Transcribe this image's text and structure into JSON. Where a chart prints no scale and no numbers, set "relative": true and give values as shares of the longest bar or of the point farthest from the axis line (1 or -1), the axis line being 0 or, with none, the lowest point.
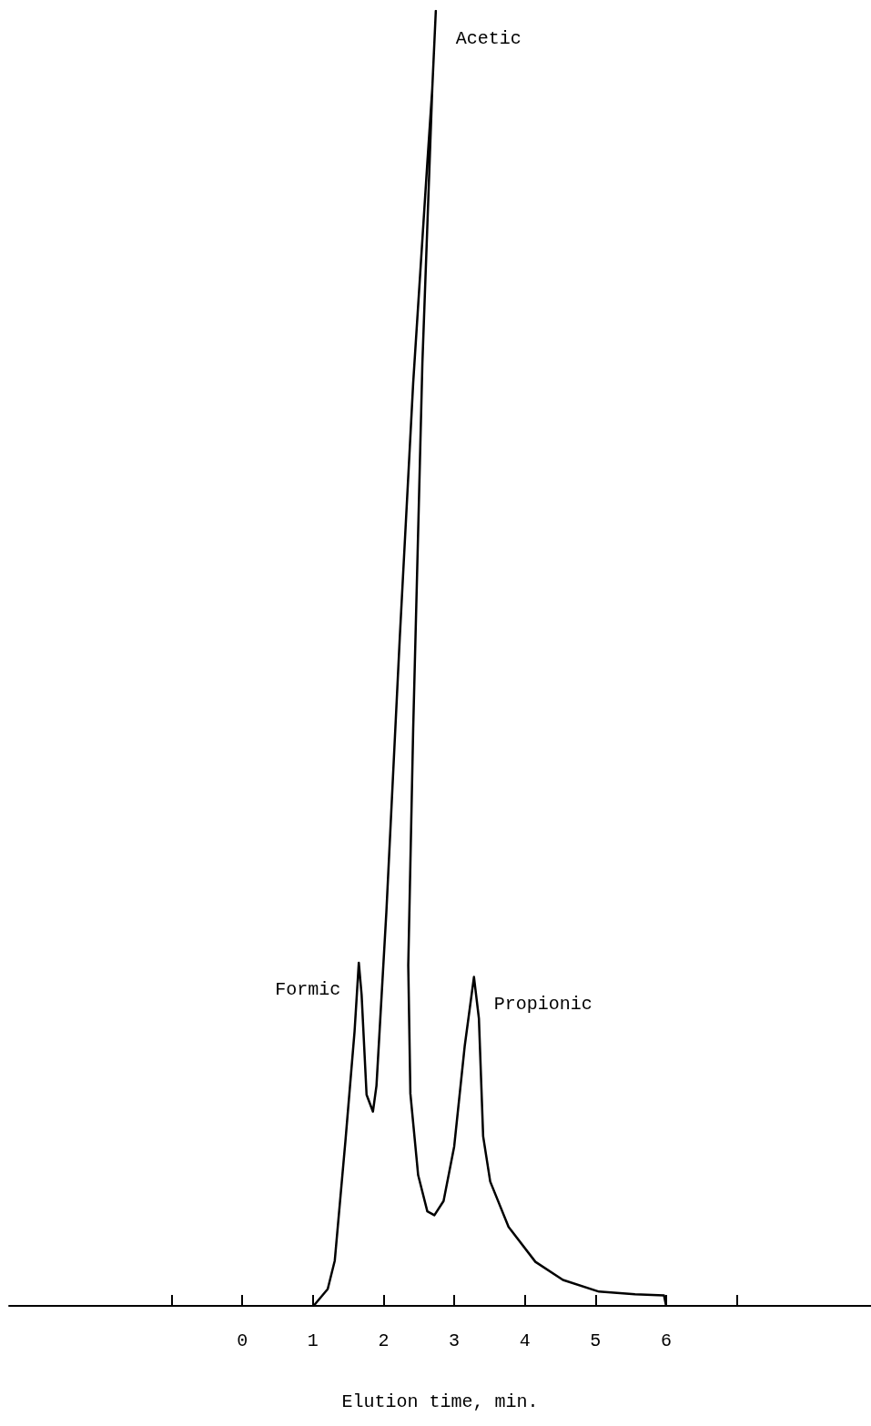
{
  "chart_data": {
    "type": "line",
    "relative": true,
    "xlabel": "Elution time, min.",
    "xlim": [
      -3.3,
      8.9
    ],
    "xticks": [
      {
        "value": -1,
        "label": null
      },
      0,
      1,
      2,
      3,
      4,
      5,
      6,
      {
        "value": 7,
        "label": null
      }
    ],
    "marker": "none",
    "line_style": "solid",
    "series": [
      {
        "color": "#000000",
        "x": [
          1.01,
          1.21,
          1.31,
          1.46,
          1.59,
          1.65,
          1.69,
          1.76,
          1.85,
          1.9,
          2.04,
          2.23,
          2.42,
          2.62,
          2.69,
          2.74,
          2.69,
          2.55,
          2.42,
          2.35,
          2.38,
          2.49,
          2.62,
          2.72,
          2.85,
          3.0,
          3.15,
          3.28,
          3.35,
          3.41,
          3.51,
          3.77,
          4.15,
          4.54,
          5.05,
          5.56,
          5.97,
          6.0
        ],
        "values": [
          0,
          0.013,
          0.035,
          0.127,
          0.212,
          0.265,
          0.24,
          0.163,
          0.15,
          0.17,
          0.304,
          0.516,
          0.713,
          0.883,
          0.94,
          1,
          0.94,
          0.728,
          0.446,
          0.263,
          0.164,
          0.101,
          0.073,
          0.07,
          0.081,
          0.123,
          0.201,
          0.254,
          0.222,
          0.131,
          0.096,
          0.061,
          0.034,
          0.02,
          0.011,
          0.009,
          0.008,
          0
        ]
      }
    ],
    "annotations": [
      {
        "text": "Acetic",
        "x": 2.74,
        "y": 1
      },
      {
        "text": "Formic",
        "x": 1.65,
        "y": 0.265
      },
      {
        "text": "Propionic",
        "x": 3.28,
        "y": 0.254
      }
    ]
  }
}
